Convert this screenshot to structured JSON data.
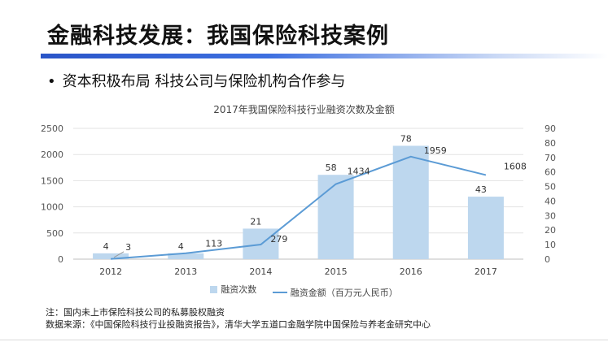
{
  "slide": {
    "title": "金融科技发展：我国保险科技案例",
    "bullet_symbol": "•",
    "subtitle": "资本积极布局 科技公司与保险机构合作参与",
    "note": "注：国内未上市保险科技公司的私募股权融资",
    "source": "数据来源：《中国保险科技行业投融资报告》，清华大学五道口金融学院中国保险与养老金研究中心"
  },
  "chart_data": {
    "type": "bar+line",
    "title": "2017年我国保险科技行业融资次数及金额",
    "categories": [
      "2012",
      "2013",
      "2014",
      "2015",
      "2016",
      "2017"
    ],
    "series": [
      {
        "name": "融资次数",
        "type": "bar",
        "axis": "right",
        "values": [
          4,
          4,
          21,
          58,
          78,
          43
        ]
      },
      {
        "name": "融资金额（百万元人民币）",
        "type": "line",
        "axis": "left",
        "values": [
          3,
          113,
          279,
          1434,
          1959,
          1608
        ]
      }
    ],
    "left_axis": {
      "min": 0,
      "max": 2500,
      "ticks": [
        0,
        500,
        1000,
        1500,
        2000,
        2500
      ]
    },
    "right_axis": {
      "min": 0,
      "max": 90,
      "ticks": [
        0,
        10,
        20,
        30,
        40,
        50,
        60,
        70,
        80,
        90
      ]
    },
    "grid": "horizontal",
    "legend": "bottom",
    "colors": {
      "bar": "#bdd7ee",
      "line": "#5b9bd5"
    }
  }
}
